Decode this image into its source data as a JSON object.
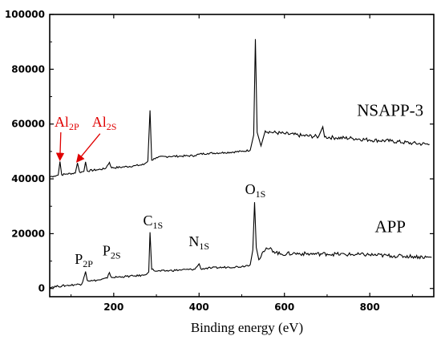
{
  "chart_data": {
    "type": "line",
    "title": "",
    "xlabel": "Binding energy (eV)",
    "ylabel": "",
    "xlim": [
      50,
      950
    ],
    "ylim": [
      -3000,
      100000
    ],
    "xticks": [
      200,
      400,
      600,
      800
    ],
    "yticks": [
      0,
      20000,
      40000,
      60000,
      80000,
      100000
    ],
    "grid": false,
    "series": [
      {
        "name": "NSAPP-3",
        "color": "#000000",
        "points": [
          [
            50,
            40800
          ],
          [
            60,
            41000
          ],
          [
            70,
            41400
          ],
          [
            74,
            46300
          ],
          [
            78,
            41500
          ],
          [
            90,
            41800
          ],
          [
            110,
            42100
          ],
          [
            115,
            45800
          ],
          [
            120,
            42400
          ],
          [
            130,
            42700
          ],
          [
            134,
            46200
          ],
          [
            138,
            42900
          ],
          [
            160,
            43300
          ],
          [
            180,
            43700
          ],
          [
            190,
            46000
          ],
          [
            195,
            44000
          ],
          [
            220,
            44300
          ],
          [
            250,
            44800
          ],
          [
            270,
            45200
          ],
          [
            280,
            46500
          ],
          [
            285,
            65000
          ],
          [
            289,
            46800
          ],
          [
            300,
            47800
          ],
          [
            330,
            48200
          ],
          [
            360,
            48300
          ],
          [
            390,
            48500
          ],
          [
            400,
            49000
          ],
          [
            420,
            49300
          ],
          [
            460,
            49600
          ],
          [
            500,
            50000
          ],
          [
            520,
            50500
          ],
          [
            528,
            56000
          ],
          [
            532,
            91000
          ],
          [
            536,
            57000
          ],
          [
            545,
            52000
          ],
          [
            555,
            57500
          ],
          [
            570,
            57000
          ],
          [
            600,
            56500
          ],
          [
            640,
            55800
          ],
          [
            680,
            55400
          ],
          [
            690,
            59000
          ],
          [
            694,
            55300
          ],
          [
            720,
            55000
          ],
          [
            760,
            54800
          ],
          [
            800,
            54200
          ],
          [
            850,
            53800
          ],
          [
            900,
            53000
          ],
          [
            940,
            52600
          ]
        ]
      },
      {
        "name": "APP",
        "color": "#000000",
        "points": [
          [
            50,
            500
          ],
          [
            70,
            800
          ],
          [
            90,
            1100
          ],
          [
            110,
            1400
          ],
          [
            125,
            1600
          ],
          [
            130,
            4000
          ],
          [
            134,
            6200
          ],
          [
            138,
            3000
          ],
          [
            150,
            2800
          ],
          [
            170,
            3200
          ],
          [
            185,
            3800
          ],
          [
            190,
            5800
          ],
          [
            195,
            4000
          ],
          [
            220,
            4300
          ],
          [
            250,
            4600
          ],
          [
            270,
            4800
          ],
          [
            282,
            6000
          ],
          [
            285,
            20500
          ],
          [
            289,
            7000
          ],
          [
            300,
            6300
          ],
          [
            330,
            6500
          ],
          [
            360,
            6800
          ],
          [
            390,
            7000
          ],
          [
            400,
            9000
          ],
          [
            404,
            7200
          ],
          [
            430,
            7500
          ],
          [
            470,
            7800
          ],
          [
            500,
            8000
          ],
          [
            520,
            8700
          ],
          [
            526,
            14000
          ],
          [
            530,
            31500
          ],
          [
            534,
            15000
          ],
          [
            540,
            10500
          ],
          [
            548,
            13000
          ],
          [
            555,
            14000
          ],
          [
            565,
            14500
          ],
          [
            590,
            12500
          ],
          [
            620,
            12800
          ],
          [
            660,
            12600
          ],
          [
            700,
            12600
          ],
          [
            750,
            12400
          ],
          [
            800,
            12300
          ],
          [
            850,
            11900
          ],
          [
            900,
            11700
          ],
          [
            945,
            11300
          ]
        ]
      }
    ],
    "annotations": [
      {
        "id": "nsapp3",
        "text": "NSAPP-3",
        "x": 848,
        "y": 63000
      },
      {
        "id": "app",
        "text": "APP",
        "x": 848,
        "y": 20500
      },
      {
        "id": "o1s",
        "main": "O",
        "sub": "1S",
        "x": 532,
        "y": 34500
      },
      {
        "id": "c1s",
        "main": "C",
        "sub": "1S",
        "x": 292,
        "y": 23000
      },
      {
        "id": "n1s",
        "main": "N",
        "sub": "1S",
        "x": 400,
        "y": 15500
      },
      {
        "id": "p2p",
        "main": "P",
        "sub": "2P",
        "x": 130,
        "y": 9000
      },
      {
        "id": "p2s",
        "main": "P",
        "sub": "2S",
        "x": 195,
        "y": 12000
      },
      {
        "id": "al2p",
        "main": "Al",
        "sub": "2P",
        "x": 90,
        "y": 59000,
        "color": "#e00000"
      },
      {
        "id": "al2s",
        "main": "Al",
        "sub": "2S",
        "x": 178,
        "y": 59000,
        "color": "#e00000"
      }
    ],
    "arrows": [
      {
        "from": [
          76,
          57000
        ],
        "to": [
          74,
          47200
        ],
        "color": "#e00000"
      },
      {
        "from": [
          168,
          56500
        ],
        "to": [
          115,
          46500
        ],
        "color": "#e00000"
      }
    ]
  }
}
